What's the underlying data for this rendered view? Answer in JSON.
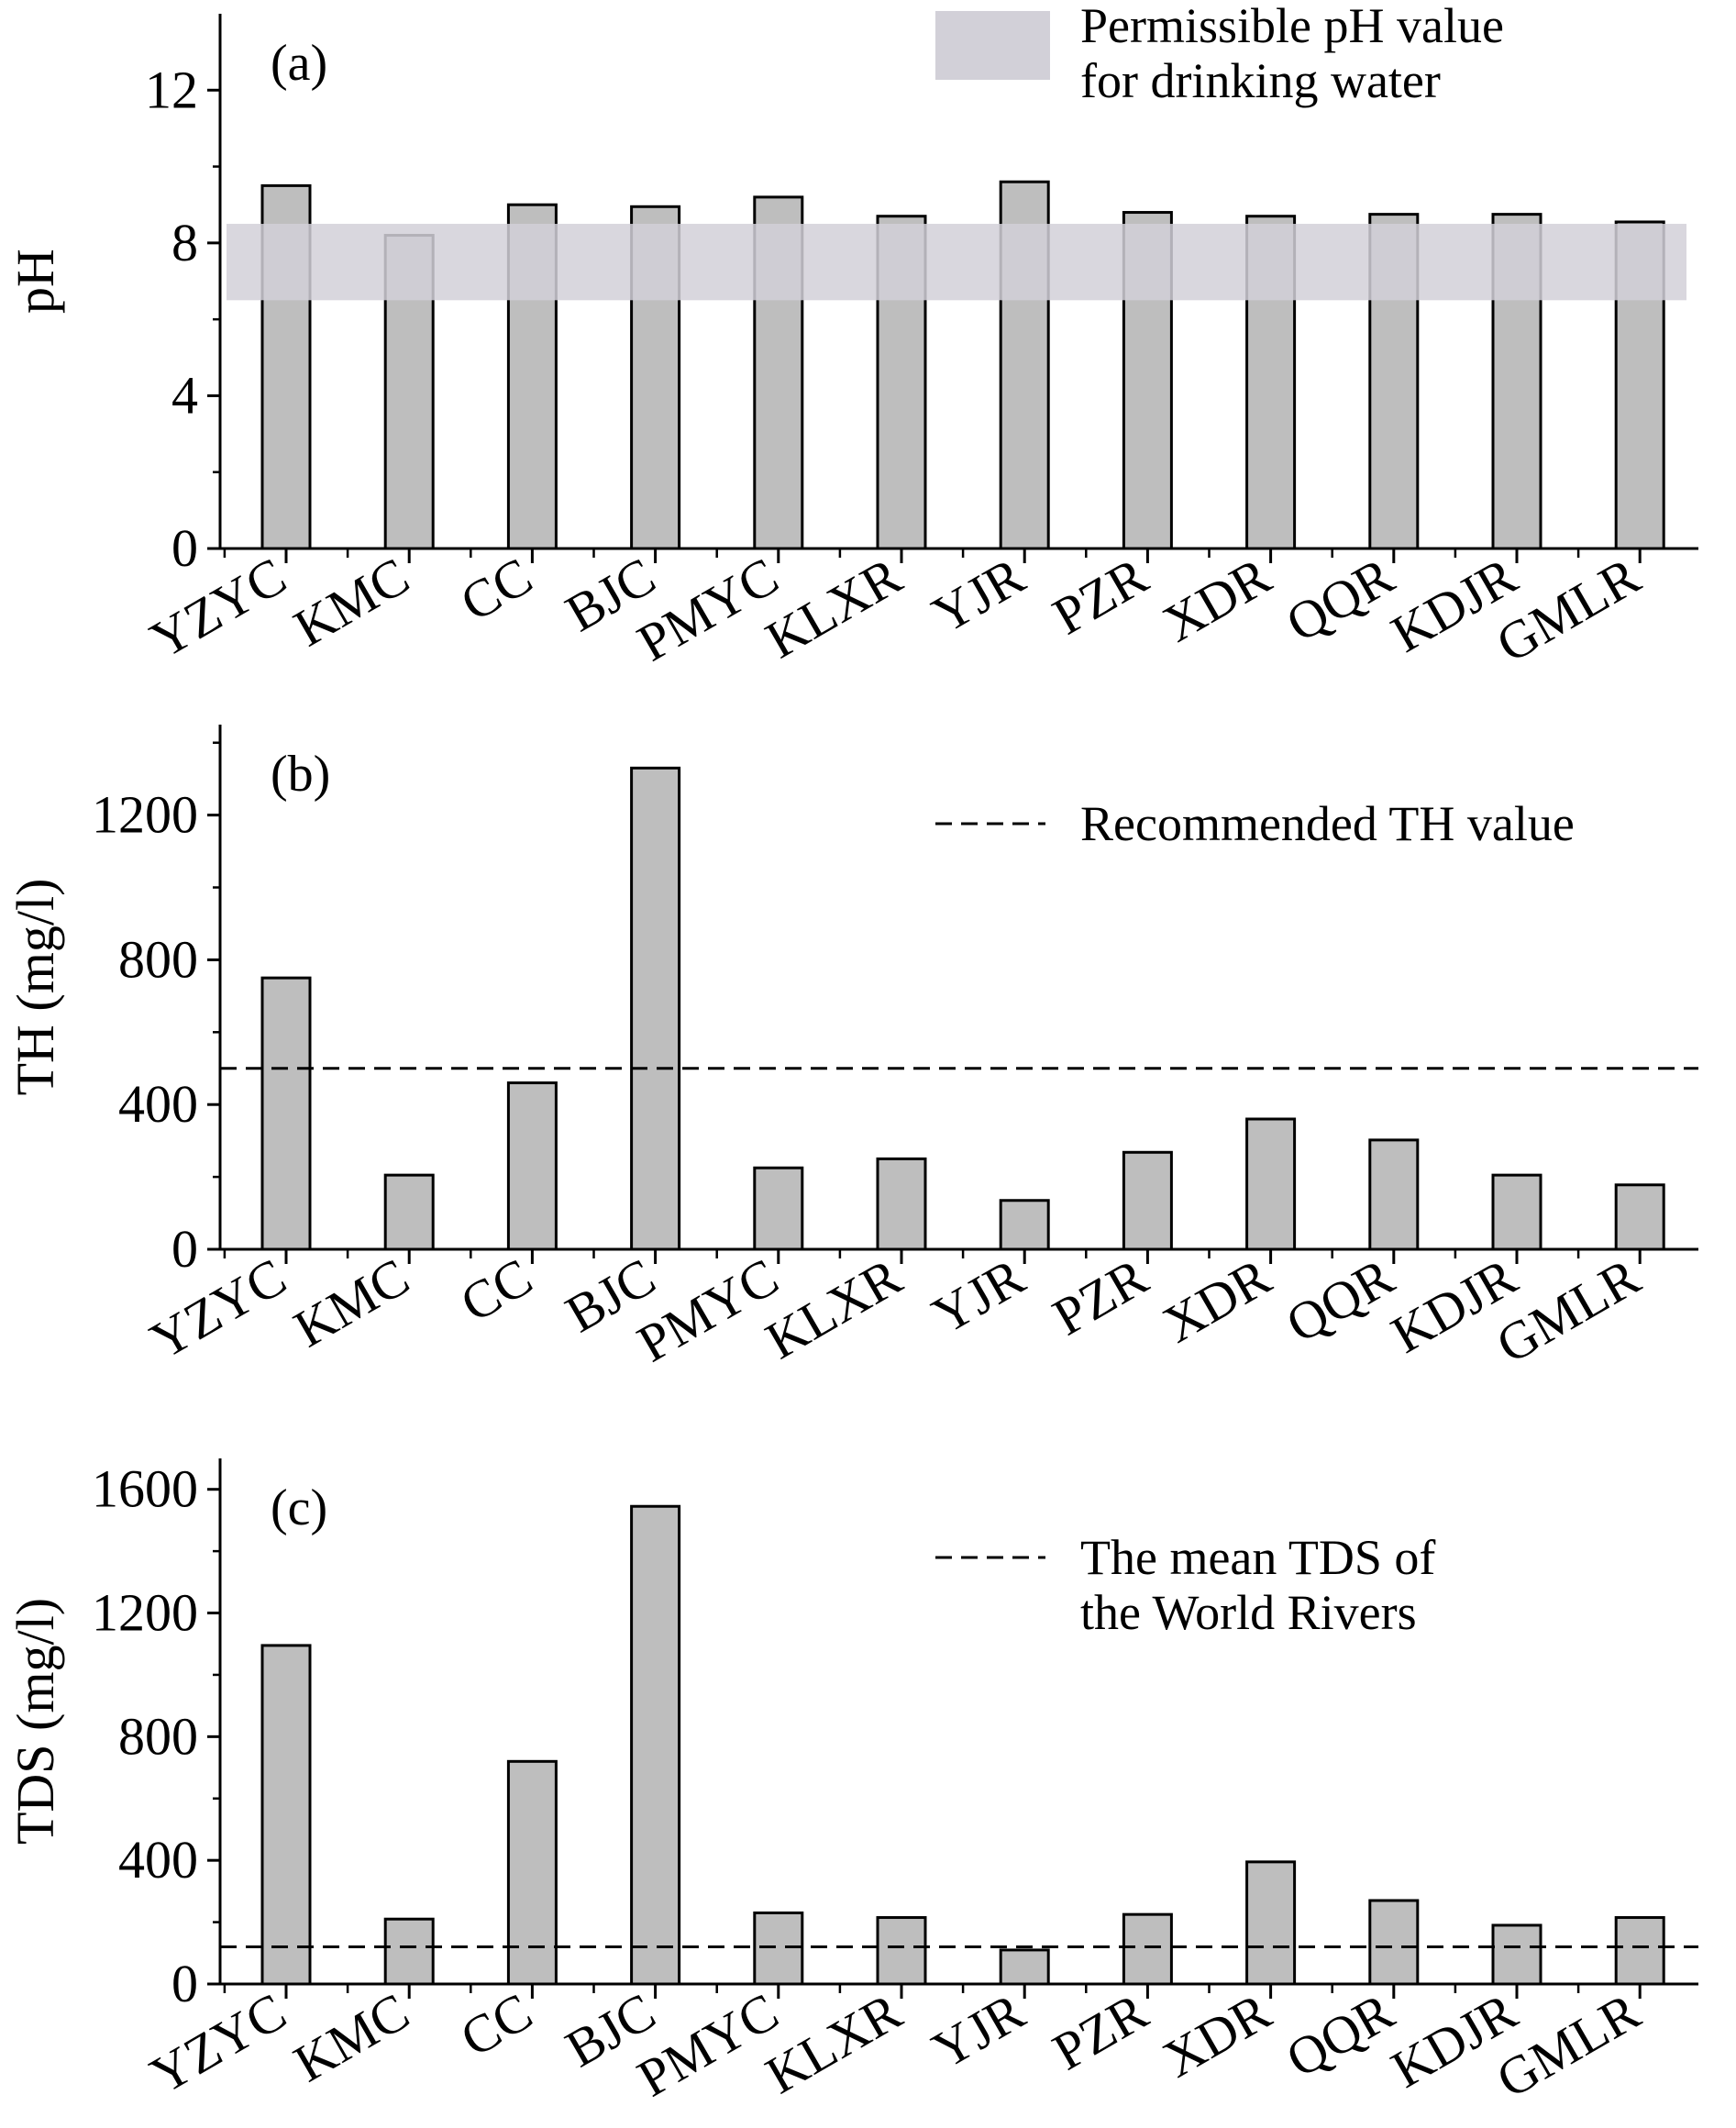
{
  "categories": [
    "YZYC",
    "KMC",
    "CC",
    "BJC",
    "PMYC",
    "KLXR",
    "YJR",
    "PZR",
    "XDR",
    "QQR",
    "KDJR",
    "GMLR"
  ],
  "colors": {
    "bar_fill": "#bebebe",
    "bar_stroke": "#000000",
    "band_fill": "#d2d0d8",
    "axis": "#000000"
  },
  "chart_data": [
    {
      "type": "bar",
      "panel_label": "(a)",
      "ylabel": "pH",
      "ylim": [
        0,
        14
      ],
      "yticks": [
        0,
        4,
        8,
        12
      ],
      "yticks_labels": [
        "0",
        "4",
        "8",
        "12"
      ],
      "categories": [
        "YZYC",
        "KMC",
        "CC",
        "BJC",
        "PMYC",
        "KLXR",
        "YJR",
        "PZR",
        "XDR",
        "QQR",
        "KDJR",
        "GMLR"
      ],
      "values": [
        9.5,
        8.2,
        9.0,
        8.95,
        9.2,
        8.7,
        9.6,
        8.8,
        8.7,
        8.75,
        8.75,
        8.55
      ],
      "reference_band": {
        "from": 6.5,
        "to": 8.5,
        "legend": [
          "Permissible pH value",
          "for drinking water"
        ]
      },
      "legend_position": "top-right"
    },
    {
      "type": "bar",
      "panel_label": "(b)",
      "ylabel": "TH (mg/l)",
      "ylim": [
        0,
        1450
      ],
      "yticks": [
        0,
        400,
        800,
        1200
      ],
      "yticks_labels": [
        "0",
        "400",
        "800",
        "1200"
      ],
      "categories": [
        "YZYC",
        "KMC",
        "CC",
        "BJC",
        "PMYC",
        "KLXR",
        "YJR",
        "PZR",
        "XDR",
        "QQR",
        "KDJR",
        "GMLR"
      ],
      "values": [
        750,
        205,
        460,
        1330,
        225,
        250,
        135,
        268,
        360,
        302,
        205,
        178
      ],
      "reference_line": {
        "value": 500,
        "style": "dashed",
        "legend": [
          "Recommended TH value"
        ]
      },
      "legend_position": "top-right"
    },
    {
      "type": "bar",
      "panel_label": "(c)",
      "ylabel": "TDS (mg/l)",
      "ylim": [
        0,
        1700
      ],
      "yticks": [
        0,
        400,
        800,
        1200,
        1600
      ],
      "yticks_labels": [
        "0",
        "400",
        "800",
        "1200",
        "1600"
      ],
      "categories": [
        "YZYC",
        "KMC",
        "CC",
        "BJC",
        "PMYC",
        "KLXR",
        "YJR",
        "PZR",
        "XDR",
        "QQR",
        "KDJR",
        "GMLR"
      ],
      "values": [
        1095,
        210,
        720,
        1545,
        230,
        215,
        110,
        225,
        395,
        270,
        190,
        215
      ],
      "reference_line": {
        "value": 120,
        "style": "dashed",
        "legend": [
          "The mean TDS  of",
          "the World Rivers"
        ]
      },
      "legend_position": "top-right"
    }
  ]
}
